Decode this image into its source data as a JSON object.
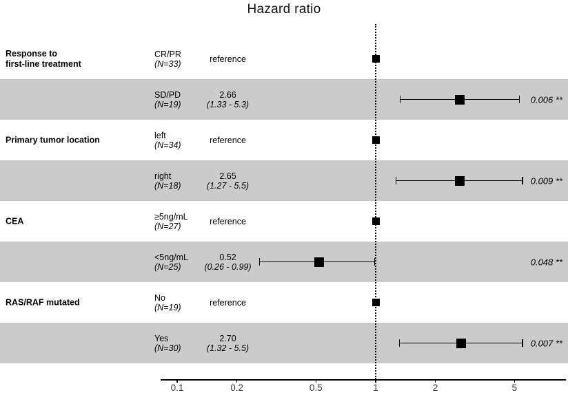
{
  "title": "Hazard ratio",
  "colors": {
    "band": "#cbcbcb",
    "marker": "#000000",
    "text": "#000000"
  },
  "chart_data": {
    "type": "forest",
    "title": "Hazard ratio",
    "x_scale": "log",
    "x_ticks": [
      "0.1",
      "0.2",
      "0.5",
      "1",
      "2",
      "5"
    ],
    "x_range": [
      0.08,
      6.5
    ],
    "reference_line": 1,
    "rows": [
      {
        "variable": "Response to\nfirst-line treatment",
        "level": "CR/PR",
        "n_label": "(N=33)",
        "estimate_label": "reference",
        "is_reference": true,
        "hr": 1,
        "ci_low": null,
        "ci_high": null,
        "ci_label": "",
        "p_label": "",
        "shaded": false
      },
      {
        "variable": "",
        "level": "SD/PD",
        "n_label": "(N=19)",
        "estimate_label": "2.66",
        "is_reference": false,
        "hr": 2.66,
        "ci_low": 1.33,
        "ci_high": 5.3,
        "ci_label": "(1.33 - 5.3)",
        "p_label": "0.006 **",
        "shaded": true
      },
      {
        "variable": "Primary tumor location",
        "level": "left",
        "n_label": "(N=34)",
        "estimate_label": "reference",
        "is_reference": true,
        "hr": 1,
        "ci_low": null,
        "ci_high": null,
        "ci_label": "",
        "p_label": "",
        "shaded": false
      },
      {
        "variable": "",
        "level": "right",
        "n_label": "(N=18)",
        "estimate_label": "2.65",
        "is_reference": false,
        "hr": 2.65,
        "ci_low": 1.27,
        "ci_high": 5.5,
        "ci_label": "(1.27 - 5.5)",
        "p_label": "0.009 **",
        "shaded": true
      },
      {
        "variable": "CEA",
        "level": "≥5ng/mL",
        "n_label": "(N=27)",
        "estimate_label": "reference",
        "is_reference": true,
        "hr": 1,
        "ci_low": null,
        "ci_high": null,
        "ci_label": "",
        "p_label": "",
        "shaded": false
      },
      {
        "variable": "",
        "level": "<5ng/mL",
        "n_label": "(N=25)",
        "estimate_label": "0.52",
        "is_reference": false,
        "hr": 0.52,
        "ci_low": 0.26,
        "ci_high": 0.99,
        "ci_label": "(0.26 - 0.99)",
        "p_label": "0.048 **",
        "shaded": true
      },
      {
        "variable": "RAS/RAF mutated",
        "level": "No",
        "n_label": "(N=19)",
        "estimate_label": "reference",
        "is_reference": true,
        "hr": 1,
        "ci_low": null,
        "ci_high": null,
        "ci_label": "",
        "p_label": "",
        "shaded": false
      },
      {
        "variable": "",
        "level": "Yes",
        "n_label": "(N=30)",
        "estimate_label": "2.70",
        "is_reference": false,
        "hr": 2.7,
        "ci_low": 1.32,
        "ci_high": 5.5,
        "ci_label": "(1.32 - 5.5)",
        "p_label": "0.007 **",
        "shaded": true
      }
    ]
  }
}
